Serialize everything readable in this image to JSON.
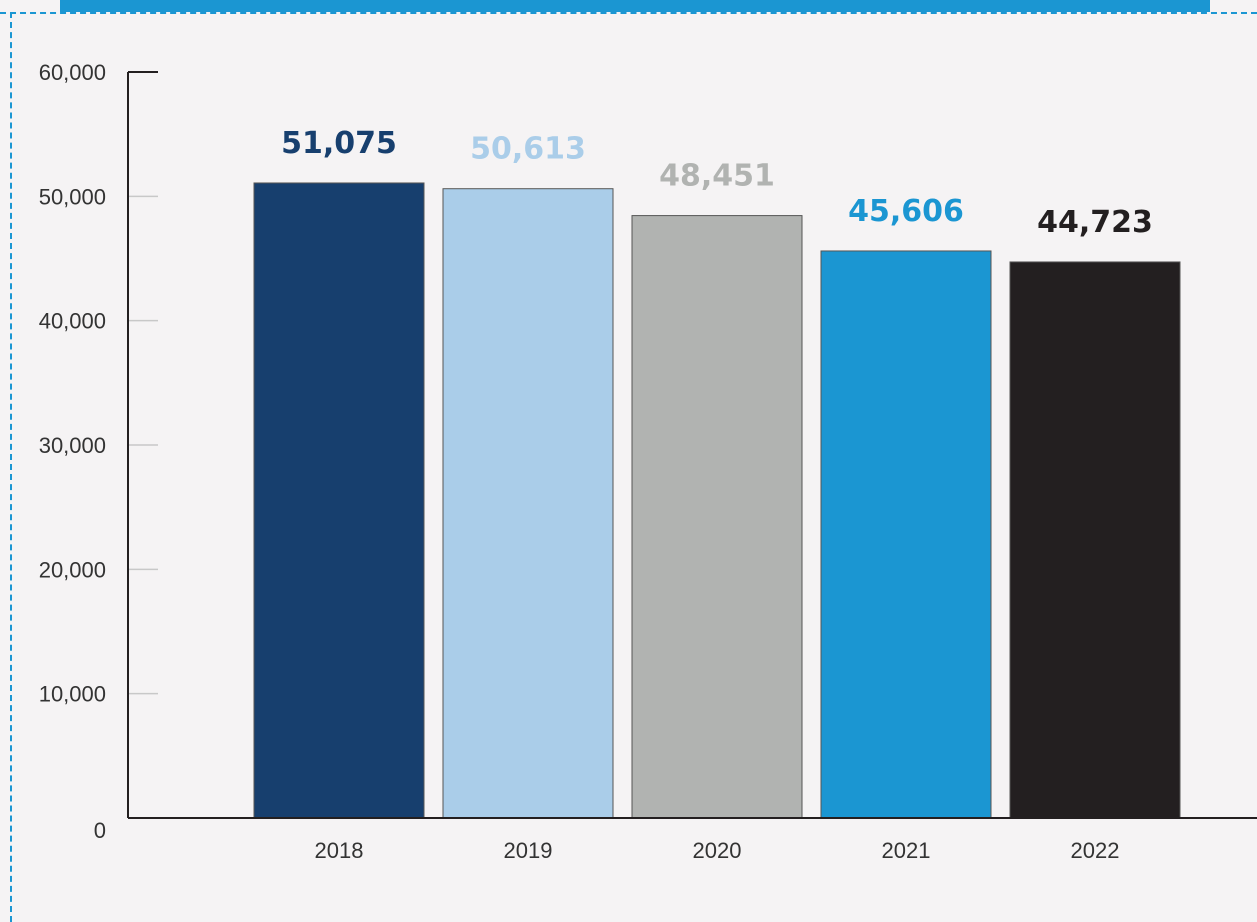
{
  "chart_data": {
    "type": "bar",
    "title": "",
    "xlabel": "",
    "ylabel": "",
    "categories": [
      "2018",
      "2019",
      "2020",
      "2021",
      "2022"
    ],
    "values": [
      51075,
      50613,
      48451,
      45606,
      44723
    ],
    "value_labels": [
      "51,075",
      "50,613",
      "48,451",
      "45,606",
      "44,723"
    ],
    "bar_colors": [
      "#173f6e",
      "#aacde9",
      "#b1b3b1",
      "#1b96d2",
      "#231f20"
    ],
    "value_label_colors": [
      "#173f6e",
      "#aacde9",
      "#b1b3b1",
      "#1b96d2",
      "#231f20"
    ],
    "ylim": [
      0,
      60000
    ],
    "yticks": [
      0,
      10000,
      20000,
      30000,
      40000,
      50000,
      60000
    ],
    "ytick_labels": [
      "0",
      "10,000",
      "20,000",
      "30,000",
      "40,000",
      "50,000",
      "60,000"
    ],
    "grid": false,
    "legend": "none"
  },
  "theme": {
    "background": "#f5f3f4",
    "accent": "#1b96d2",
    "axis_color": "#231f20",
    "tick_color": "#c8c8c8"
  }
}
